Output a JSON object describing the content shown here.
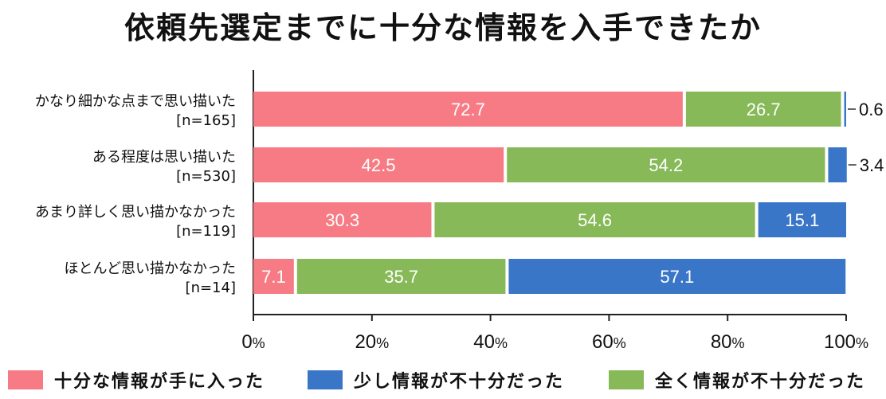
{
  "title": "依頼先選定までに十分な情報を入手できたか",
  "colors": {
    "sufficient": "#f77b84",
    "insufficient": "#87b958",
    "somewhat": "#3a76c8"
  },
  "chart_data": {
    "type": "bar",
    "orientation": "horizontal",
    "stacked": true,
    "categories": [
      [
        "かなり細かな点まで思い描いた",
        "[n=165]"
      ],
      [
        "ある程度は思い描いた",
        "[n=530]"
      ],
      [
        "あまり詳しく思い描かなかった",
        "[n=119]"
      ],
      [
        "ほとんど思い描かなかった",
        "[n=14]"
      ]
    ],
    "series": [
      {
        "name": "十分な情報が手に入った",
        "key": "sufficient",
        "values": [
          72.7,
          42.5,
          30.3,
          7.1
        ]
      },
      {
        "name": "全く情報が不十分だった",
        "key": "insufficient",
        "values": [
          26.7,
          54.2,
          54.6,
          35.7
        ]
      },
      {
        "name": "少し情報が不十分だった",
        "key": "somewhat",
        "values": [
          0.6,
          3.4,
          15.1,
          57.1
        ]
      }
    ],
    "xlim": [
      0,
      100
    ],
    "xticks": [
      "0%",
      "20%",
      "40%",
      "60%",
      "80%",
      "100%"
    ],
    "legend_order": [
      "sufficient",
      "somewhat",
      "insufficient"
    ],
    "legend_position": "bottom"
  },
  "legend": {
    "sufficient": "十分な情報が手に入った",
    "somewhat": "少し情報が不十分だった",
    "insufficient": "全く情報が不十分だった"
  }
}
